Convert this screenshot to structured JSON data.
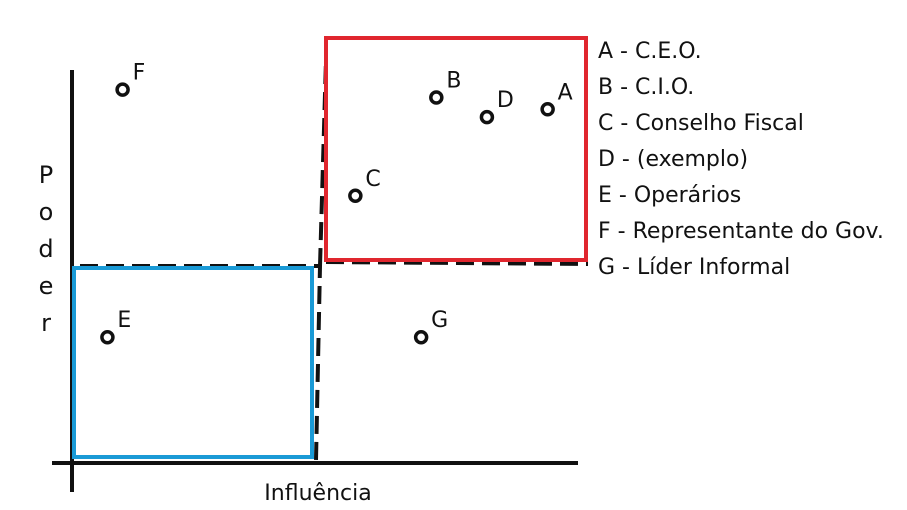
{
  "chart_data": {
    "type": "scatter",
    "title": "",
    "xlabel": "Influência",
    "ylabel": "Poder",
    "quadrants": [
      {
        "name": "high-power-high-influence",
        "color": "#e0262e"
      },
      {
        "name": "low-power-low-influence",
        "color": "#1a9ad6"
      }
    ],
    "points": [
      {
        "label": "A",
        "influence": 9.4,
        "power": 9.0
      },
      {
        "label": "B",
        "influence": 7.2,
        "power": 9.3
      },
      {
        "label": "C",
        "influence": 5.6,
        "power": 6.8
      },
      {
        "label": "D",
        "influence": 8.2,
        "power": 8.8
      },
      {
        "label": "E",
        "influence": 0.7,
        "power": 3.2
      },
      {
        "label": "F",
        "influence": 1.0,
        "power": 9.5
      },
      {
        "label": "G",
        "influence": 6.9,
        "power": 3.2
      }
    ],
    "legend": [
      "A - C.E.O.",
      "B - C.I.O.",
      "C - Conselho Fiscal",
      "D - (exemplo)",
      "E - Operários",
      "F -  Representante do Gov.",
      "G - Líder Informal"
    ]
  },
  "colors": {
    "red_box": "#e0262e",
    "blue_box": "#1a9ad6",
    "ink": "#111111"
  }
}
